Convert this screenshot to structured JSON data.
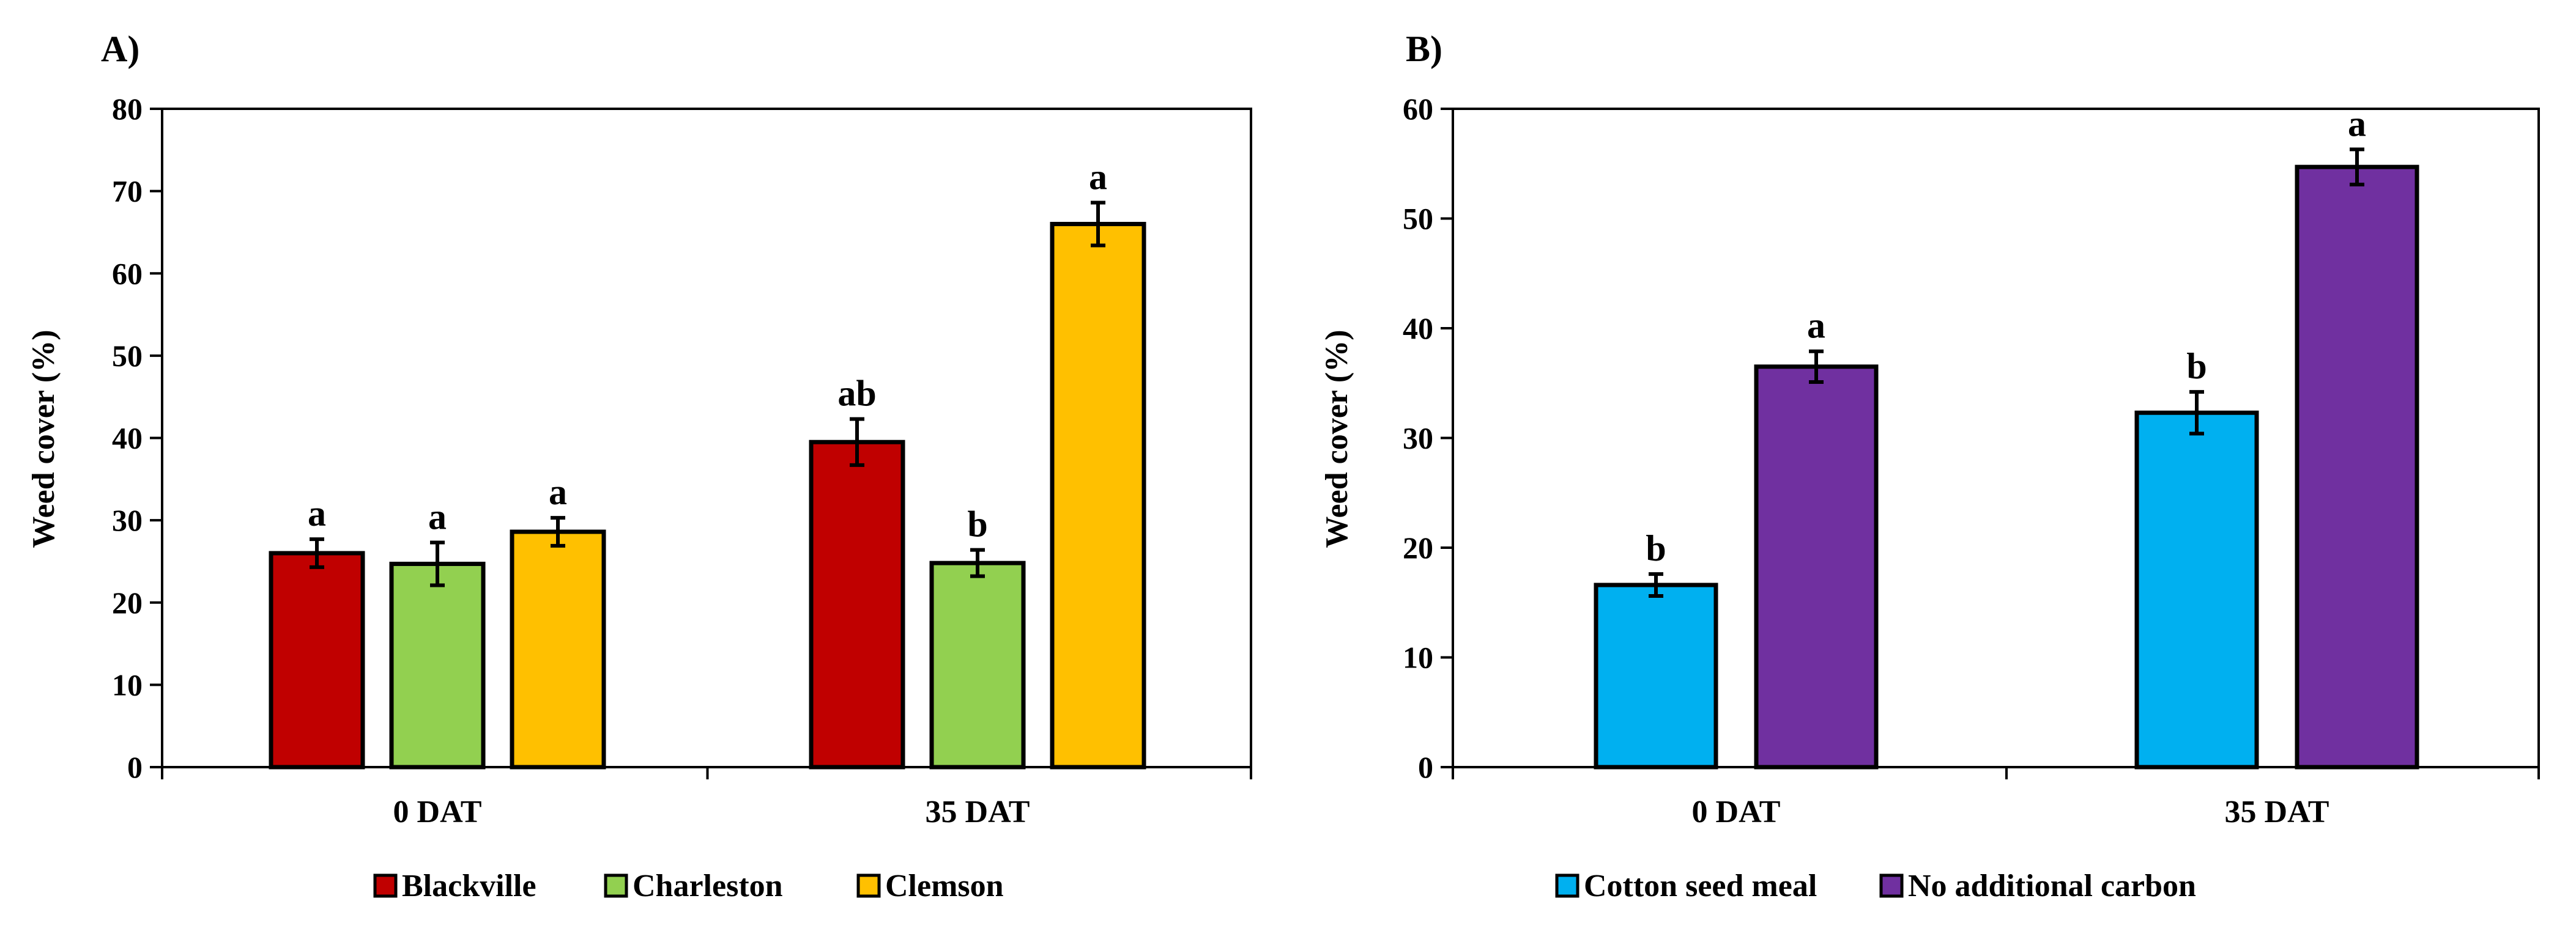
{
  "chart_data": [
    {
      "type": "bar",
      "panel_label": "A)",
      "title": "",
      "xlabel": "",
      "ylabel": "Weed cover (%)",
      "ylim": [
        0,
        80
      ],
      "yticks": [
        0,
        10,
        20,
        30,
        40,
        50,
        60,
        70,
        80
      ],
      "categories": [
        "0 DAT",
        "35 DAT"
      ],
      "series": [
        {
          "name": "Blackville",
          "color": "#C00000",
          "values": [
            26,
            39.5
          ],
          "errors": [
            1.7,
            2.8
          ],
          "letters": [
            "a",
            "ab"
          ]
        },
        {
          "name": "Charleston",
          "color": "#92D050",
          "values": [
            24.7,
            24.8
          ],
          "errors": [
            2.6,
            1.6
          ],
          "letters": [
            "a",
            "b"
          ]
        },
        {
          "name": "Clemson",
          "color": "#FFC000",
          "values": [
            28.6,
            66
          ],
          "errors": [
            1.7,
            2.6
          ],
          "letters": [
            "a",
            "a"
          ]
        }
      ],
      "legend_position": "bottom",
      "grid": false
    },
    {
      "type": "bar",
      "panel_label": "B)",
      "title": "",
      "xlabel": "",
      "ylabel": "Weed cover (%)",
      "ylim": [
        0,
        60
      ],
      "yticks": [
        0,
        10,
        20,
        30,
        40,
        50,
        60
      ],
      "categories": [
        "0 DAT",
        "35 DAT"
      ],
      "series": [
        {
          "name": "Cotton seed meal",
          "color": "#00B0F0",
          "values": [
            16.6,
            32.3
          ],
          "errors": [
            1.0,
            1.9
          ],
          "letters": [
            "b",
            "b"
          ]
        },
        {
          "name": "No additional carbon",
          "color": "#7030A0",
          "values": [
            36.5,
            54.7
          ],
          "errors": [
            1.4,
            1.6
          ],
          "letters": [
            "a",
            "a"
          ]
        }
      ],
      "legend_position": "bottom",
      "grid": false
    }
  ]
}
